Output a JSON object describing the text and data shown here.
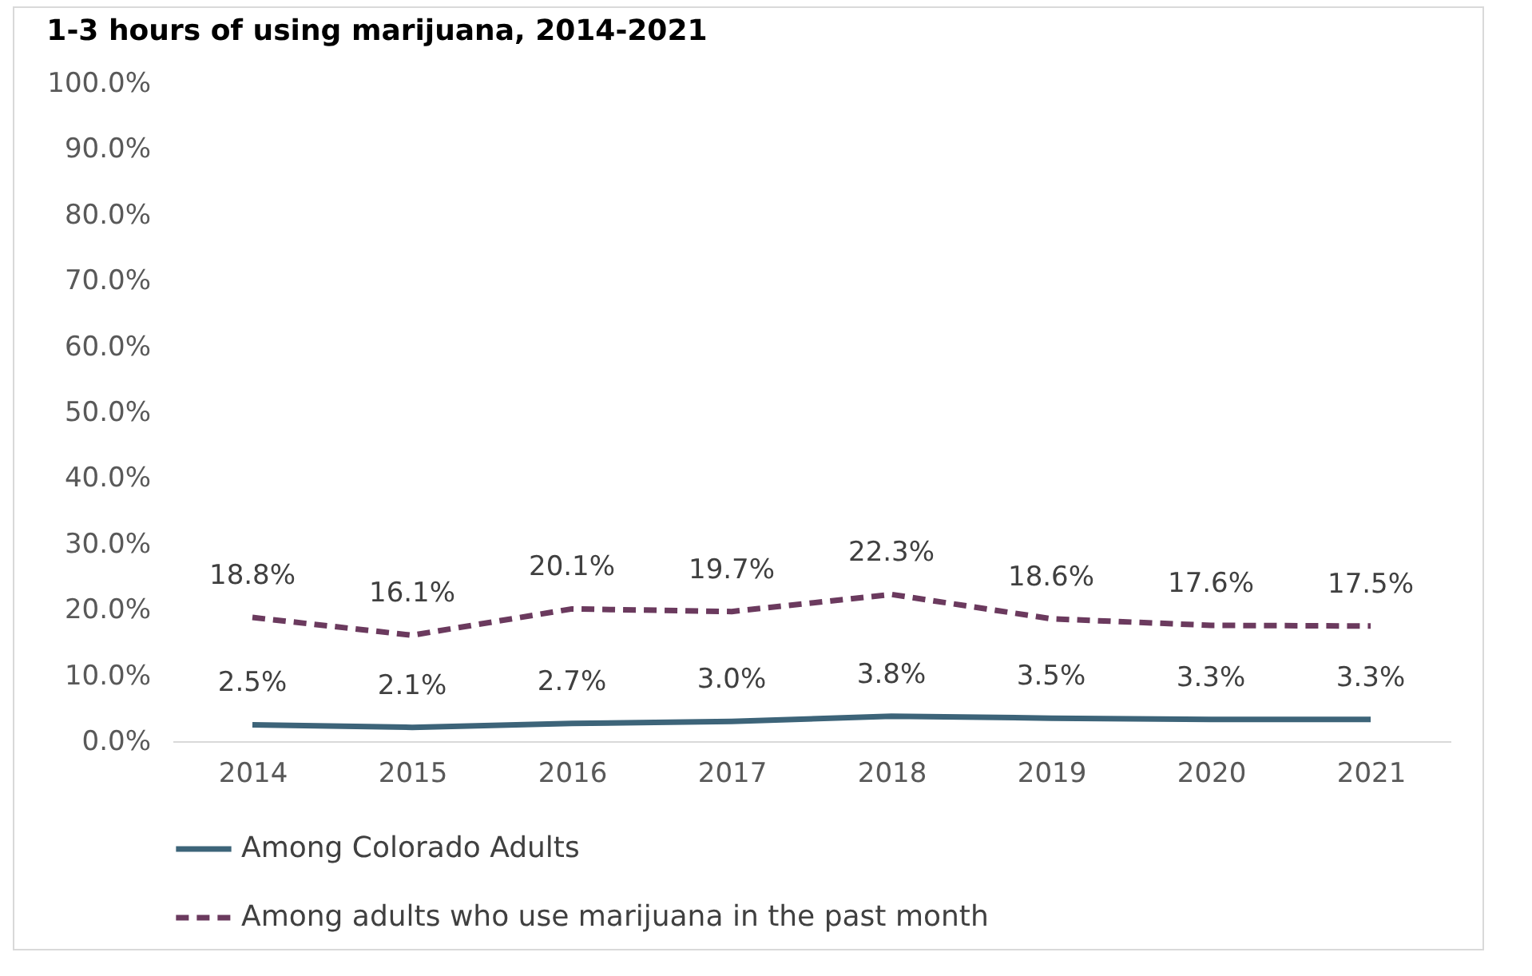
{
  "chart_data": {
    "type": "line",
    "title": "1-3 hours of using marijuana, 2014-2021",
    "categories": [
      "2014",
      "2015",
      "2016",
      "2017",
      "2018",
      "2019",
      "2020",
      "2021"
    ],
    "series": [
      {
        "name": "Among Colorado Adults",
        "color": "#3d6479",
        "line_style": "solid",
        "values": [
          2.5,
          2.1,
          2.7,
          3.0,
          3.8,
          3.5,
          3.3,
          3.3
        ],
        "value_labels": [
          "2.5%",
          "2.1%",
          "2.7%",
          "3.0%",
          "3.8%",
          "3.5%",
          "3.3%",
          "3.3%"
        ]
      },
      {
        "name": "Among adults who use marijuana in the past month",
        "color": "#6b3a5e",
        "line_style": "dashed",
        "values": [
          18.8,
          16.1,
          20.1,
          19.7,
          22.3,
          18.6,
          17.6,
          17.5
        ],
        "value_labels": [
          "18.8%",
          "16.1%",
          "20.1%",
          "19.7%",
          "22.3%",
          "18.6%",
          "17.6%",
          "17.5%"
        ]
      }
    ],
    "ylim": [
      0,
      100
    ],
    "yticks": [
      {
        "value": 0,
        "label": "0.0%"
      },
      {
        "value": 10,
        "label": "10.0%"
      },
      {
        "value": 20,
        "label": "20.0%"
      },
      {
        "value": 30,
        "label": "30.0%"
      },
      {
        "value": 40,
        "label": "40.0%"
      },
      {
        "value": 50,
        "label": "50.0%"
      },
      {
        "value": 60,
        "label": "60.0%"
      },
      {
        "value": 70,
        "label": "70.0%"
      },
      {
        "value": 80,
        "label": "80.0%"
      },
      {
        "value": 90,
        "label": "90.0%"
      },
      {
        "value": 100,
        "label": "100.0%"
      }
    ],
    "grid": false,
    "legend": "bottom"
  }
}
